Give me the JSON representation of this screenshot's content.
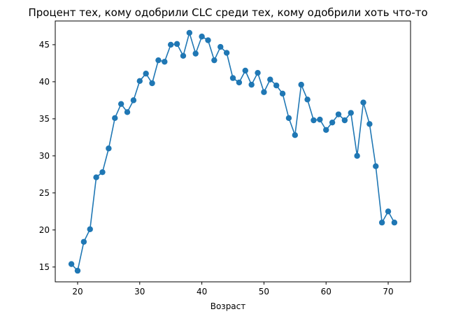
{
  "chart_data": {
    "type": "line",
    "title": "Процент тех, кому одобрили CLC среди тех, кому одобрили хоть что-то",
    "xlabel": "Возраст",
    "ylabel": "",
    "xlim": [
      16.4,
      73.6
    ],
    "ylim": [
      13.0,
      48.2
    ],
    "xticks": [
      20,
      30,
      40,
      50,
      60,
      70
    ],
    "yticks": [
      15,
      20,
      25,
      30,
      35,
      40,
      45
    ],
    "grid": false,
    "legend": null,
    "series": [
      {
        "color": "#1f77b4",
        "marker": "circle",
        "x": [
          19,
          20,
          21,
          22,
          23,
          24,
          25,
          26,
          27,
          28,
          29,
          30,
          31,
          32,
          33,
          34,
          35,
          36,
          37,
          38,
          39,
          40,
          41,
          42,
          43,
          44,
          45,
          46,
          47,
          48,
          49,
          50,
          51,
          52,
          53,
          54,
          55,
          56,
          57,
          58,
          59,
          60,
          61,
          62,
          63,
          64,
          65,
          66,
          67,
          68,
          69,
          70,
          71
        ],
        "y": [
          15.4,
          14.5,
          18.4,
          20.1,
          27.1,
          27.8,
          31.0,
          35.1,
          37.0,
          35.9,
          37.5,
          40.1,
          41.1,
          39.8,
          42.9,
          42.7,
          45.0,
          45.1,
          43.5,
          46.6,
          43.8,
          46.1,
          45.6,
          42.9,
          44.7,
          43.9,
          40.5,
          39.9,
          41.5,
          39.6,
          41.2,
          38.6,
          40.3,
          39.5,
          38.4,
          35.1,
          32.8,
          39.6,
          37.6,
          34.8,
          34.9,
          33.5,
          34.5,
          35.6,
          34.8,
          35.8,
          30.0,
          37.2,
          34.3,
          28.6,
          21.0,
          22.5,
          21.0
        ]
      }
    ]
  }
}
